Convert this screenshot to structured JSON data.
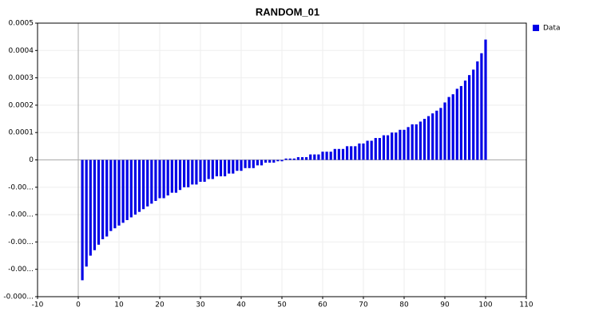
{
  "chart_data": {
    "type": "bar",
    "title": "RANDOM_01",
    "x": [
      1,
      2,
      3,
      4,
      5,
      6,
      7,
      8,
      9,
      10,
      11,
      12,
      13,
      14,
      15,
      16,
      17,
      18,
      19,
      20,
      21,
      22,
      23,
      24,
      25,
      26,
      27,
      28,
      29,
      30,
      31,
      32,
      33,
      34,
      35,
      36,
      37,
      38,
      39,
      40,
      41,
      42,
      43,
      44,
      45,
      46,
      47,
      48,
      49,
      50,
      51,
      52,
      53,
      54,
      55,
      56,
      57,
      58,
      59,
      60,
      61,
      62,
      63,
      64,
      65,
      66,
      67,
      68,
      69,
      70,
      71,
      72,
      73,
      74,
      75,
      76,
      77,
      78,
      79,
      80,
      81,
      82,
      83,
      84,
      85,
      86,
      87,
      88,
      89,
      90,
      91,
      92,
      93,
      94,
      95,
      96,
      97,
      98,
      99,
      100
    ],
    "series": [
      {
        "name": "Data",
        "color": "#0000e6",
        "values": [
          -0.00044,
          -0.00039,
          -0.00035,
          -0.00033,
          -0.00031,
          -0.00029,
          -0.00028,
          -0.00026,
          -0.00025,
          -0.00024,
          -0.00023,
          -0.00022,
          -0.00021,
          -0.0002,
          -0.00019,
          -0.00018,
          -0.00017,
          -0.00016,
          -0.00015,
          -0.00014,
          -0.00014,
          -0.00013,
          -0.00012,
          -0.00012,
          -0.00011,
          -0.0001,
          -0.0001,
          -9e-05,
          -9e-05,
          -8e-05,
          -8e-05,
          -7e-05,
          -7e-05,
          -6e-05,
          -6e-05,
          -6e-05,
          -5e-05,
          -5e-05,
          -4e-05,
          -4e-05,
          -3e-05,
          -3e-05,
          -3e-05,
          -2e-05,
          -2e-05,
          -1e-05,
          -1e-05,
          -1e-05,
          -5e-06,
          -5e-06,
          5e-06,
          5e-06,
          5e-06,
          1e-05,
          1e-05,
          1e-05,
          2e-05,
          2e-05,
          2e-05,
          3e-05,
          3e-05,
          3e-05,
          4e-05,
          4e-05,
          4e-05,
          5e-05,
          5e-05,
          5e-05,
          6e-05,
          6e-05,
          7e-05,
          7e-05,
          8e-05,
          8e-05,
          9e-05,
          9e-05,
          0.0001,
          0.0001,
          0.00011,
          0.00011,
          0.00012,
          0.00013,
          0.00013,
          0.00014,
          0.00015,
          0.00016,
          0.00017,
          0.00018,
          0.00019,
          0.00021,
          0.00023,
          0.00024,
          0.00026,
          0.00027,
          0.00029,
          0.00031,
          0.00033,
          0.00036,
          0.00039,
          0.00044
        ]
      }
    ],
    "xlim": [
      -10,
      110
    ],
    "xticks": [
      -10,
      0,
      10,
      20,
      30,
      40,
      50,
      60,
      70,
      80,
      90,
      100,
      110
    ],
    "ylim": [
      -0.0005,
      0.0005
    ],
    "yticks": [
      {
        "value": -0.0005,
        "label": "-0.000..."
      },
      {
        "value": -0.0004,
        "label": "-0.00..."
      },
      {
        "value": -0.0003,
        "label": "-0.00..."
      },
      {
        "value": -0.0002,
        "label": "-0.00..."
      },
      {
        "value": -0.0001,
        "label": "-0.00..."
      },
      0,
      0.0001,
      0.0002,
      0.0003,
      0.0004,
      0.0005
    ],
    "grid": true,
    "legend": "right"
  }
}
